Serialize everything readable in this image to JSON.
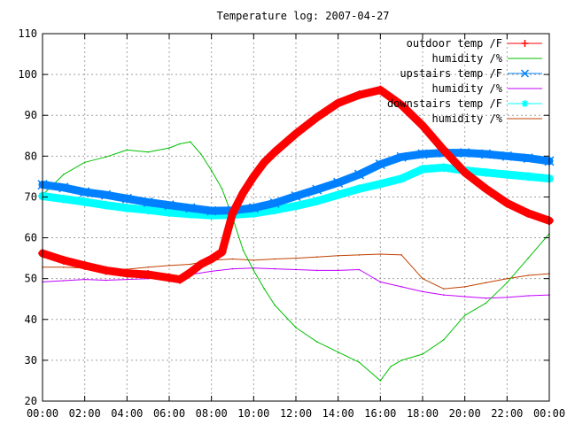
{
  "chart_data": {
    "type": "line",
    "title": "Temperature log: 2007-04-27",
    "xlabel": "",
    "ylabel": "",
    "xlim": [
      0,
      24
    ],
    "ylim": [
      20,
      110
    ],
    "x_tick_labels": [
      "00:00",
      "02:00",
      "04:00",
      "06:00",
      "08:00",
      "10:00",
      "12:00",
      "14:00",
      "16:00",
      "18:00",
      "20:00",
      "22:00",
      "00:00"
    ],
    "y_tick_labels": [
      "20",
      "30",
      "40",
      "50",
      "60",
      "70",
      "80",
      "90",
      "100",
      "110"
    ],
    "grid": true,
    "legend_position": "top-right",
    "series": [
      {
        "name": "outdoor temp /F",
        "color": "#ff0000",
        "marker": "plus",
        "points": [
          [
            0,
            56.2
          ],
          [
            1,
            54.5
          ],
          [
            2,
            53.2
          ],
          [
            3,
            52.0
          ],
          [
            4,
            51.3
          ],
          [
            5,
            51.0
          ],
          [
            6,
            50.2
          ],
          [
            6.5,
            49.8
          ],
          [
            7,
            51.5
          ],
          [
            7.5,
            53.5
          ],
          [
            8,
            54.8
          ],
          [
            8.5,
            56.5
          ],
          [
            9,
            66.0
          ],
          [
            9.5,
            71.0
          ],
          [
            10,
            75.0
          ],
          [
            10.5,
            78.5
          ],
          [
            11,
            81.0
          ],
          [
            12,
            85.5
          ],
          [
            13,
            89.5
          ],
          [
            14,
            93.0
          ],
          [
            15,
            95.0
          ],
          [
            16,
            96.2
          ],
          [
            17,
            92.5
          ],
          [
            18,
            87.5
          ],
          [
            19,
            81.5
          ],
          [
            20,
            76.0
          ],
          [
            21,
            72.0
          ],
          [
            22,
            68.5
          ],
          [
            23,
            66.0
          ],
          [
            24,
            64.2
          ]
        ]
      },
      {
        "name": "humidity /%",
        "color": "#00c000",
        "marker": "none",
        "points": [
          [
            0,
            70.5
          ],
          [
            1,
            75.5
          ],
          [
            2,
            78.5
          ],
          [
            3,
            79.8
          ],
          [
            4,
            81.5
          ],
          [
            5,
            81.0
          ],
          [
            6,
            82.0
          ],
          [
            6.5,
            83.0
          ],
          [
            7,
            83.5
          ],
          [
            7.5,
            80.5
          ],
          [
            8,
            76.5
          ],
          [
            8.5,
            72.0
          ],
          [
            9,
            65.0
          ],
          [
            9.5,
            57.0
          ],
          [
            10,
            52.0
          ],
          [
            10.5,
            47.5
          ],
          [
            11,
            43.5
          ],
          [
            12,
            38.0
          ],
          [
            13,
            34.5
          ],
          [
            14,
            32.0
          ],
          [
            15,
            29.5
          ],
          [
            16,
            25.0
          ],
          [
            16.5,
            28.5
          ],
          [
            17,
            30.0
          ],
          [
            18,
            31.5
          ],
          [
            19,
            35.0
          ],
          [
            20,
            41.0
          ],
          [
            21,
            44.0
          ],
          [
            22,
            49.0
          ],
          [
            23,
            55.0
          ],
          [
            24,
            61.0
          ]
        ]
      },
      {
        "name": "upstairs temp /F",
        "color": "#0080ff",
        "marker": "cross",
        "points": [
          [
            0,
            73.0
          ],
          [
            1,
            72.3
          ],
          [
            2,
            71.2
          ],
          [
            3,
            70.5
          ],
          [
            4,
            69.6
          ],
          [
            5,
            68.7
          ],
          [
            6,
            68.0
          ],
          [
            7,
            67.3
          ],
          [
            8,
            66.6
          ],
          [
            9,
            66.7
          ],
          [
            10,
            67.3
          ],
          [
            11,
            68.5
          ],
          [
            12,
            70.2
          ],
          [
            13,
            71.8
          ],
          [
            14,
            73.5
          ],
          [
            15,
            75.5
          ],
          [
            16,
            78.0
          ],
          [
            17,
            79.8
          ],
          [
            18,
            80.5
          ],
          [
            19,
            80.8
          ],
          [
            20,
            80.8
          ],
          [
            21,
            80.5
          ],
          [
            22,
            80.0
          ],
          [
            23,
            79.5
          ],
          [
            24,
            78.8
          ]
        ]
      },
      {
        "name": "humidity /%",
        "color": "#c000ff",
        "marker": "none",
        "points": [
          [
            0,
            49.2
          ],
          [
            1,
            49.5
          ],
          [
            2,
            49.8
          ],
          [
            3,
            49.6
          ],
          [
            4,
            49.8
          ],
          [
            5,
            50.0
          ],
          [
            6,
            50.3
          ],
          [
            7,
            51.0
          ],
          [
            8,
            51.8
          ],
          [
            9,
            52.4
          ],
          [
            10,
            52.6
          ],
          [
            11,
            52.4
          ],
          [
            12,
            52.2
          ],
          [
            13,
            52.0
          ],
          [
            14,
            52.0
          ],
          [
            15,
            52.2
          ],
          [
            16,
            49.2
          ],
          [
            17,
            48.0
          ],
          [
            18,
            46.8
          ],
          [
            19,
            46.0
          ],
          [
            20,
            45.6
          ],
          [
            21,
            45.2
          ],
          [
            22,
            45.4
          ],
          [
            23,
            45.8
          ],
          [
            24,
            46.0
          ]
        ]
      },
      {
        "name": "downstairs temp /F",
        "color": "#00ffff",
        "marker": "star",
        "points": [
          [
            0,
            70.2
          ],
          [
            1,
            69.5
          ],
          [
            2,
            68.8
          ],
          [
            3,
            68.0
          ],
          [
            4,
            67.3
          ],
          [
            5,
            66.8
          ],
          [
            6,
            66.2
          ],
          [
            7,
            65.8
          ],
          [
            8,
            65.5
          ],
          [
            9,
            65.6
          ],
          [
            10,
            66.0
          ],
          [
            11,
            66.8
          ],
          [
            12,
            67.8
          ],
          [
            13,
            69.0
          ],
          [
            14,
            70.5
          ],
          [
            15,
            72.0
          ],
          [
            16,
            73.2
          ],
          [
            17,
            74.5
          ],
          [
            18,
            76.8
          ],
          [
            19,
            77.2
          ],
          [
            20,
            76.5
          ],
          [
            21,
            76.0
          ],
          [
            22,
            75.5
          ],
          [
            23,
            75.0
          ],
          [
            24,
            74.5
          ]
        ]
      },
      {
        "name": "humidity /%",
        "color": "#c04000",
        "marker": "none",
        "points": [
          [
            0,
            52.8
          ],
          [
            1,
            52.8
          ],
          [
            2,
            52.6
          ],
          [
            3,
            52.4
          ],
          [
            4,
            52.3
          ],
          [
            5,
            52.8
          ],
          [
            6,
            53.2
          ],
          [
            7,
            53.5
          ],
          [
            8,
            54.5
          ],
          [
            9,
            54.8
          ],
          [
            10,
            54.5
          ],
          [
            11,
            54.8
          ],
          [
            12,
            55.0
          ],
          [
            13,
            55.3
          ],
          [
            14,
            55.6
          ],
          [
            15,
            55.8
          ],
          [
            16,
            56.0
          ],
          [
            17,
            55.8
          ],
          [
            18,
            50.0
          ],
          [
            19,
            47.5
          ],
          [
            20,
            48.0
          ],
          [
            21,
            49.0
          ],
          [
            22,
            50.0
          ],
          [
            23,
            50.8
          ],
          [
            24,
            51.2
          ]
        ]
      }
    ]
  }
}
